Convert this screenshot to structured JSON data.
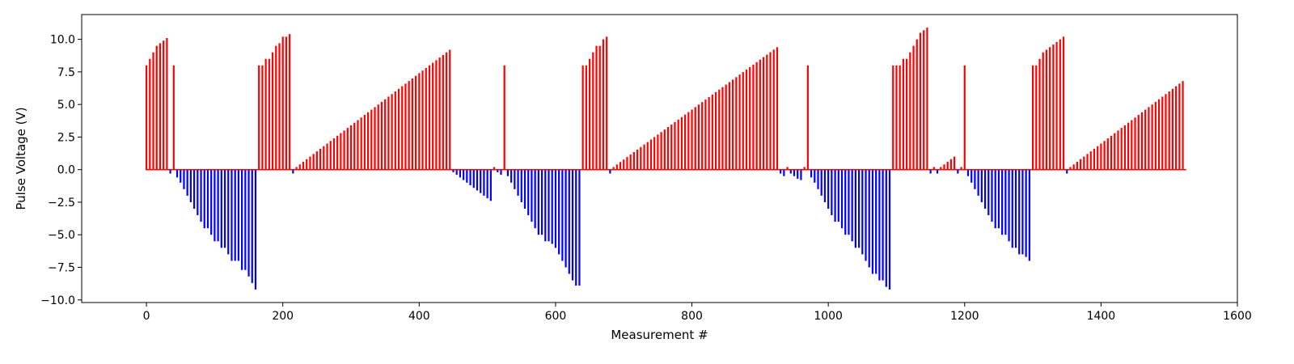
{
  "chart_data": {
    "type": "bar",
    "title": "",
    "xlabel": "Measurement #",
    "ylabel": "Pulse Voltage (V)",
    "xlim": [
      -95,
      1600
    ],
    "ylim": [
      -10.2,
      11.9
    ],
    "xticks": [
      0,
      200,
      400,
      600,
      800,
      1000,
      1200,
      1400,
      1600
    ],
    "yticks": [
      -10.0,
      -7.5,
      -5.0,
      -2.5,
      0.0,
      2.5,
      5.0,
      7.5,
      10.0
    ],
    "grid": false,
    "legend": "none",
    "colors": {
      "positive": "#ff0000",
      "negative": "#0000ff"
    },
    "series": [
      {
        "color": "#ff0000",
        "x": [
          0,
          5,
          10,
          15,
          20,
          25,
          30
        ],
        "values": [
          8.0,
          8.5,
          9.0,
          9.5,
          9.7,
          9.9,
          10.1
        ]
      },
      {
        "color": "#0000ff",
        "x": [
          35
        ],
        "values": [
          -0.3
        ]
      },
      {
        "color": "#ff0000",
        "x": [
          40
        ],
        "values": [
          8.0
        ]
      },
      {
        "color": "#0000ff",
        "x": [
          45,
          50,
          55,
          60,
          65,
          70,
          75,
          80,
          85,
          90,
          95,
          100,
          105,
          110,
          115,
          120,
          125,
          130,
          135,
          140,
          145,
          150,
          155,
          160
        ],
        "values": [
          -0.6,
          -1.0,
          -1.5,
          -2.0,
          -2.5,
          -3.0,
          -3.5,
          -4.0,
          -4.5,
          -4.5,
          -5.0,
          -5.5,
          -5.5,
          -6.0,
          -6.0,
          -6.5,
          -7.0,
          -7.0,
          -7.0,
          -7.7,
          -7.7,
          -8.2,
          -8.7,
          -9.2
        ]
      },
      {
        "color": "#ff0000",
        "x": [
          165,
          170,
          175,
          180,
          185,
          190,
          195,
          200,
          205,
          210
        ],
        "values": [
          8.0,
          8.0,
          8.5,
          8.5,
          9.0,
          9.5,
          9.7,
          10.2,
          10.2,
          10.4
        ]
      },
      {
        "color": "#0000ff",
        "x": [
          215
        ],
        "values": [
          -0.3
        ]
      },
      {
        "color": "#ff0000",
        "x_start": 220,
        "x_step": 5,
        "count": 46,
        "y_start": 0.2,
        "y_end": 9.2
      },
      {
        "color": "#0000ff",
        "x_start": 450,
        "x_step": 5,
        "count": 12,
        "y_start": -0.2,
        "y_end": -2.4
      },
      {
        "color": "#ff0000",
        "x": [
          510
        ],
        "values": [
          0.2
        ]
      },
      {
        "color": "#0000ff",
        "x": [
          515,
          520
        ],
        "values": [
          -0.2,
          -0.4
        ]
      },
      {
        "color": "#ff0000",
        "x": [
          525
        ],
        "values": [
          8.0
        ]
      },
      {
        "color": "#0000ff",
        "x": [
          530,
          535,
          540,
          545,
          550,
          555,
          560,
          565,
          570,
          575,
          580,
          585,
          590,
          595,
          600,
          605,
          610,
          615,
          620,
          625,
          630,
          635
        ],
        "values": [
          -0.5,
          -1.0,
          -1.5,
          -2.0,
          -2.5,
          -3.0,
          -3.5,
          -4.0,
          -4.5,
          -5.0,
          -5.0,
          -5.5,
          -5.5,
          -5.7,
          -6.0,
          -6.5,
          -7.0,
          -7.5,
          -8.0,
          -8.5,
          -8.9,
          -8.9
        ]
      },
      {
        "color": "#ff0000",
        "x": [
          640,
          645,
          650,
          655,
          660,
          665,
          670,
          675
        ],
        "values": [
          8.0,
          8.0,
          8.5,
          9.0,
          9.5,
          9.5,
          10.0,
          10.2
        ]
      },
      {
        "color": "#0000ff",
        "x": [
          680
        ],
        "values": [
          -0.3
        ]
      },
      {
        "color": "#ff0000",
        "x_start": 685,
        "x_step": 5,
        "count": 49,
        "y_start": 0.2,
        "y_end": 9.4
      },
      {
        "color": "#0000ff",
        "x": [
          930,
          935
        ],
        "values": [
          -0.3,
          -0.5
        ]
      },
      {
        "color": "#ff0000",
        "x": [
          940
        ],
        "values": [
          0.2
        ]
      },
      {
        "color": "#0000ff",
        "x": [
          945,
          950,
          955,
          960
        ],
        "values": [
          -0.3,
          -0.5,
          -0.7,
          -0.8
        ]
      },
      {
        "color": "#ff0000",
        "x": [
          965,
          970
        ],
        "values": [
          0.2,
          8.0
        ]
      },
      {
        "color": "#0000ff",
        "x": [
          975,
          980,
          985,
          990,
          995,
          1000,
          1005,
          1010,
          1015,
          1020,
          1025,
          1030,
          1035,
          1040,
          1045,
          1050,
          1055,
          1060,
          1065,
          1070,
          1075,
          1080,
          1085,
          1090
        ],
        "values": [
          -0.6,
          -1.0,
          -1.5,
          -2.0,
          -2.5,
          -3.0,
          -3.5,
          -4.0,
          -4.0,
          -4.5,
          -5.0,
          -5.0,
          -5.5,
          -6.0,
          -6.0,
          -6.5,
          -7.0,
          -7.5,
          -8.0,
          -8.0,
          -8.5,
          -8.5,
          -9.0,
          -9.2
        ]
      },
      {
        "color": "#ff0000",
        "x": [
          1095,
          1100,
          1105,
          1110,
          1115,
          1120,
          1125,
          1130,
          1135,
          1140,
          1145
        ],
        "values": [
          8.0,
          8.0,
          8.0,
          8.5,
          8.5,
          9.0,
          9.5,
          10.0,
          10.5,
          10.7,
          10.9
        ]
      },
      {
        "color": "#0000ff",
        "x": [
          1150
        ],
        "values": [
          -0.3
        ]
      },
      {
        "color": "#ff0000",
        "x": [
          1155
        ],
        "values": [
          0.2
        ]
      },
      {
        "color": "#0000ff",
        "x": [
          1160
        ],
        "values": [
          -0.3
        ]
      },
      {
        "color": "#ff0000",
        "x": [
          1165,
          1170,
          1175,
          1180,
          1185
        ],
        "values": [
          0.2,
          0.4,
          0.6,
          0.8,
          1.0
        ]
      },
      {
        "color": "#0000ff",
        "x": [
          1190
        ],
        "values": [
          -0.3
        ]
      },
      {
        "color": "#ff0000",
        "x": [
          1195,
          1200
        ],
        "values": [
          0.2,
          8.0
        ]
      },
      {
        "color": "#0000ff",
        "x": [
          1205,
          1210,
          1215,
          1220,
          1225,
          1230,
          1235,
          1240,
          1245,
          1250,
          1255,
          1260,
          1265,
          1270,
          1275,
          1280,
          1285,
          1290,
          1295
        ],
        "values": [
          -0.5,
          -1.0,
          -1.5,
          -2.0,
          -2.5,
          -3.0,
          -3.5,
          -4.0,
          -4.5,
          -4.5,
          -5.0,
          -5.0,
          -5.5,
          -6.0,
          -6.0,
          -6.5,
          -6.5,
          -6.7,
          -7.0
        ]
      },
      {
        "color": "#ff0000",
        "x": [
          1300,
          1305,
          1310,
          1315,
          1320,
          1325,
          1330,
          1335,
          1340,
          1345
        ],
        "values": [
          8.0,
          8.0,
          8.5,
          9.0,
          9.2,
          9.4,
          9.6,
          9.8,
          10.0,
          10.2
        ]
      },
      {
        "color": "#0000ff",
        "x": [
          1350
        ],
        "values": [
          -0.3
        ]
      },
      {
        "color": "#ff0000",
        "x_start": 1355,
        "x_step": 5,
        "count": 34,
        "y_start": 0.2,
        "y_end": 6.8
      }
    ]
  }
}
